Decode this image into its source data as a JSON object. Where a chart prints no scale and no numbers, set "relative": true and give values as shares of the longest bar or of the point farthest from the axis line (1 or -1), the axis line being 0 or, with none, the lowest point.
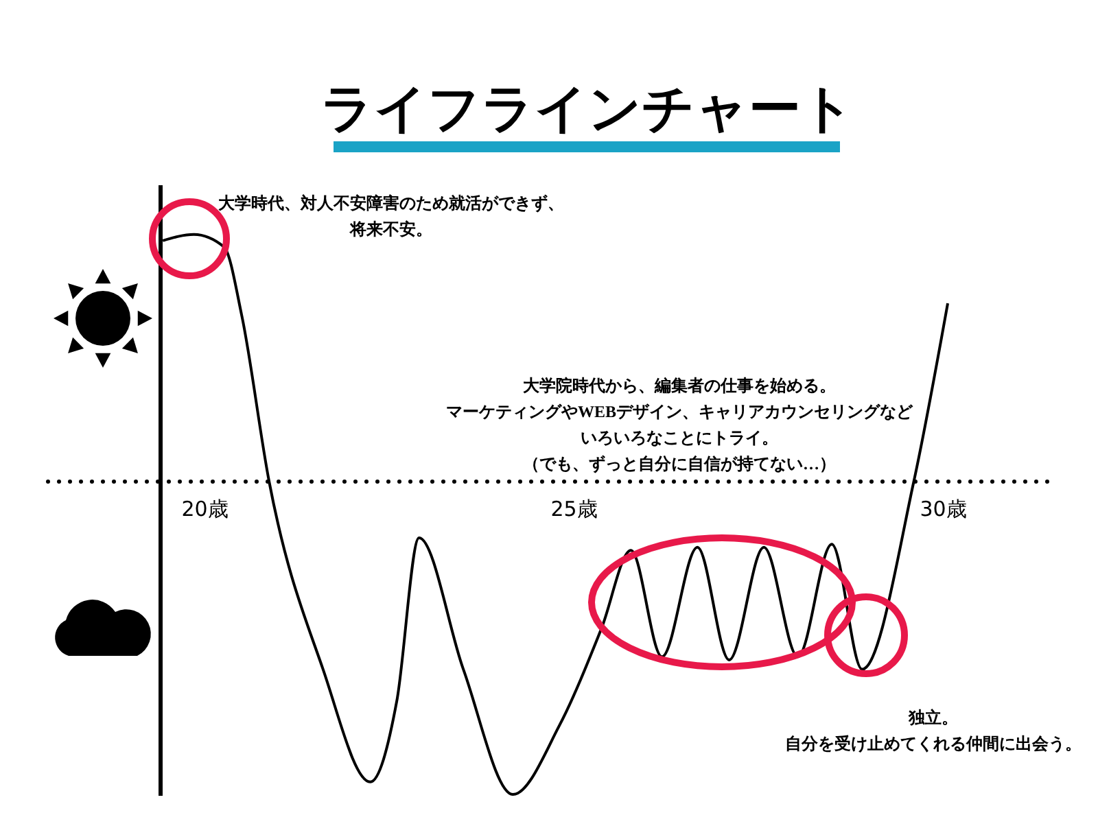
{
  "chart_data": {
    "type": "line",
    "title": "ライフラインチャート",
    "relative": true,
    "xlim": [
      19.4,
      31.5
    ],
    "xticks": [
      {
        "value": 20,
        "label": "20歳"
      },
      {
        "value": 25,
        "label": "25歳"
      },
      {
        "value": 30,
        "label": "30歳"
      }
    ],
    "series": [
      {
        "color": "#000000",
        "x": [
          19.43,
          19.85,
          20.26,
          20.5,
          20.87,
          21.6,
          22.24,
          22.6,
          22.9,
          23.5,
          24.17,
          24.8,
          25.37,
          25.77,
          26.19,
          26.67,
          27.1,
          27.57,
          28.03,
          28.49,
          28.9,
          29.6,
          30.06
        ],
        "values": [
          0.77,
          0.79,
          0.75,
          0.53,
          0,
          -0.6,
          -0.96,
          -0.7,
          -0.18,
          -0.6,
          -1,
          -0.78,
          -0.47,
          -0.22,
          -0.56,
          -0.21,
          -0.57,
          -0.21,
          -0.56,
          -0.2,
          -0.6,
          0,
          0.57
        ]
      }
    ],
    "annotations": [
      "大学時代、対人不安障害のため就活ができず、",
      "将来不安。",
      "大学院時代から、編集者の仕事を始める。",
      "マーケティングやWEBデザイン、キャリアカウンセリングなど",
      "いろいろなことにトライ。",
      "（でも、ずっと自分に自信が持てない…）",
      "独立。",
      "自分を受け止めてくれる仲間に出会う。"
    ],
    "ref_lines": [
      {
        "axis": "y",
        "value": 0,
        "line_style": "dotted",
        "color": "#000000"
      }
    ]
  }
}
